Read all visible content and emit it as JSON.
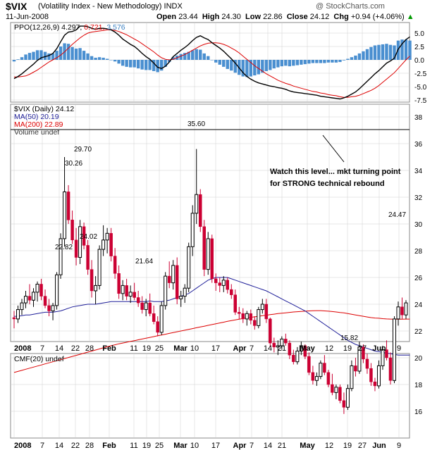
{
  "header": {
    "symbol": "$VIX",
    "name": "(Volatility Index - New Methodology)",
    "exchange": "INDX",
    "date": "11-Jun-2008",
    "watermark": "@ StockCharts.com",
    "open_label": "Open",
    "open": "23.44",
    "high_label": "High",
    "high": "24.30",
    "low_label": "Low",
    "low": "22.86",
    "close_label": "Close",
    "close": "24.12",
    "chg_label": "Chg",
    "chg": "+0.94 (+4.06%)",
    "chg_arrow": "▲"
  },
  "colors": {
    "up": "#000000",
    "down": "#cc0033",
    "ma50": "#1f1f99",
    "ma200": "#dd0000",
    "ppo": "#000000",
    "signal": "#dd0000",
    "histogram": "#4a8fd0",
    "grid": "#cfcfcf"
  },
  "ppo_panel": {
    "legend_prefix": "PPO(12,26,9)",
    "ppo_value": "4.297,",
    "signal_value": "0.721,",
    "hist_value": "3.576",
    "y_ticks": [
      "5.0",
      "2.5",
      "0.0",
      "-2.5",
      "-5.0",
      "-7.5"
    ]
  },
  "price_panel": {
    "legend_main": "$VIX (Daily) 24.12",
    "legend_ma50": "MA(50) 20.19",
    "legend_ma200": "MA(200) 22.89",
    "legend_volume": "Volume undef",
    "y_ticks": [
      "38",
      "36",
      "34",
      "32",
      "30",
      "28",
      "26",
      "24",
      "22",
      "20",
      "18",
      "16"
    ],
    "annotation_line1": "Watch this level... mkt turning point",
    "annotation_line2": "for STRONG technical rebound",
    "labels": [
      "35.60",
      "30.26",
      "29.70",
      "24.02",
      "22.82",
      "21.64",
      "15.82",
      "24.47"
    ]
  },
  "cmf_panel": {
    "legend": "CMF(20) undef"
  },
  "x_axis": {
    "labels": [
      "2008",
      "7",
      "14",
      "22",
      "28",
      "Feb",
      "11",
      "19",
      "25",
      "Mar",
      "10",
      "17",
      "Apr",
      "7",
      "14",
      "21",
      "May",
      "12",
      "19",
      "27",
      "Jun",
      "9"
    ]
  },
  "chart_data": {
    "type": "candlestick",
    "title": "$VIX (Volatility Index - New Methodology)",
    "period": "Daily",
    "date_range": [
      "2008-01-02",
      "2008-06-11"
    ],
    "ylim": [
      15,
      39
    ],
    "resistance_level": 35.6,
    "ohlc": [
      [
        23.0,
        23.5,
        22.2,
        22.9
      ],
      [
        22.9,
        23.9,
        22.6,
        23.6
      ],
      [
        23.6,
        24.4,
        23.2,
        24.1
      ],
      [
        24.1,
        25.0,
        23.7,
        24.6
      ],
      [
        24.6,
        25.5,
        24.0,
        24.3
      ],
      [
        24.3,
        25.2,
        23.8,
        24.9
      ],
      [
        24.9,
        25.7,
        24.2,
        25.5
      ],
      [
        25.5,
        25.9,
        24.3,
        24.6
      ],
      [
        24.6,
        25.1,
        23.7,
        23.9
      ],
      [
        23.9,
        24.4,
        23.1,
        23.5
      ],
      [
        23.5,
        24.1,
        22.8,
        23.9
      ],
      [
        23.9,
        26.4,
        23.6,
        26.2
      ],
      [
        26.2,
        29.3,
        25.9,
        28.9
      ],
      [
        28.9,
        35.0,
        28.3,
        32.4
      ],
      [
        32.4,
        32.9,
        30.0,
        30.3
      ],
      [
        30.3,
        31.0,
        28.5,
        28.8
      ],
      [
        28.8,
        29.7,
        26.9,
        27.5
      ],
      [
        27.5,
        30.3,
        27.0,
        29.8
      ],
      [
        29.8,
        30.1,
        28.1,
        28.4
      ],
      [
        28.4,
        28.8,
        26.2,
        26.6
      ],
      [
        26.6,
        27.3,
        24.5,
        25.0
      ],
      [
        25.0,
        26.1,
        24.0,
        25.4
      ],
      [
        25.4,
        28.4,
        25.1,
        28.1
      ],
      [
        28.1,
        29.9,
        27.6,
        28.8
      ],
      [
        28.8,
        29.7,
        27.8,
        29.3
      ],
      [
        29.3,
        29.7,
        27.2,
        27.6
      ],
      [
        27.6,
        28.2,
        25.9,
        26.3
      ],
      [
        26.3,
        26.9,
        24.4,
        24.8
      ],
      [
        24.8,
        25.8,
        24.3,
        25.4
      ],
      [
        25.4,
        25.9,
        24.3,
        24.6
      ],
      [
        24.6,
        25.4,
        24.1,
        24.9
      ],
      [
        24.9,
        25.6,
        24.3,
        24.5
      ],
      [
        24.5,
        25.0,
        23.8,
        24.1
      ],
      [
        24.1,
        24.6,
        23.3,
        23.6
      ],
      [
        23.6,
        24.4,
        23.1,
        24.1
      ],
      [
        24.1,
        24.8,
        23.1,
        23.3
      ],
      [
        23.3,
        23.9,
        22.5,
        22.7
      ],
      [
        22.7,
        23.1,
        21.6,
        21.9
      ],
      [
        21.9,
        24.2,
        21.7,
        23.9
      ],
      [
        23.9,
        26.4,
        23.6,
        26.1
      ],
      [
        26.1,
        27.2,
        25.2,
        25.6
      ],
      [
        25.6,
        27.3,
        25.1,
        26.9
      ],
      [
        26.9,
        27.5,
        24.0,
        24.4
      ],
      [
        24.4,
        25.0,
        23.8,
        24.6
      ],
      [
        24.6,
        25.5,
        24.1,
        25.2
      ],
      [
        25.2,
        28.6,
        24.9,
        28.3
      ],
      [
        28.3,
        31.4,
        27.6,
        30.8
      ],
      [
        30.8,
        35.6,
        30.0,
        32.2
      ],
      [
        32.2,
        32.6,
        29.4,
        29.8
      ],
      [
        29.8,
        30.3,
        26.1,
        26.6
      ],
      [
        26.6,
        29.4,
        26.2,
        28.9
      ],
      [
        28.9,
        29.2,
        25.6,
        25.9
      ],
      [
        25.9,
        26.3,
        25.0,
        25.6
      ],
      [
        25.6,
        26.0,
        24.9,
        25.4
      ],
      [
        25.4,
        26.1,
        24.9,
        25.8
      ],
      [
        25.8,
        26.0,
        24.8,
        25.1
      ],
      [
        25.1,
        25.5,
        24.4,
        24.7
      ],
      [
        24.7,
        25.1,
        23.2,
        23.4
      ],
      [
        23.4,
        23.8,
        22.9,
        23.3
      ],
      [
        23.3,
        23.7,
        22.6,
        22.9
      ],
      [
        22.9,
        23.5,
        22.4,
        23.3
      ],
      [
        23.3,
        23.6,
        22.5,
        22.8
      ],
      [
        22.8,
        23.1,
        22.1,
        22.4
      ],
      [
        22.4,
        23.8,
        22.2,
        23.6
      ],
      [
        23.6,
        24.4,
        23.3,
        24.0
      ],
      [
        24.0,
        24.4,
        22.6,
        22.9
      ],
      [
        22.9,
        23.0,
        20.8,
        21.1
      ],
      [
        21.1,
        21.5,
        20.4,
        20.8
      ],
      [
        20.8,
        21.3,
        20.2,
        20.9
      ],
      [
        20.9,
        21.6,
        20.6,
        21.4
      ],
      [
        21.4,
        21.8,
        20.9,
        21.1
      ],
      [
        21.1,
        21.3,
        19.9,
        20.2
      ],
      [
        20.2,
        20.6,
        19.5,
        19.7
      ],
      [
        19.7,
        20.8,
        19.5,
        20.5
      ],
      [
        20.5,
        21.2,
        20.2,
        20.9
      ],
      [
        20.9,
        21.0,
        19.9,
        20.1
      ],
      [
        20.1,
        20.4,
        18.7,
        18.9
      ],
      [
        18.9,
        19.4,
        18.0,
        18.3
      ],
      [
        18.3,
        18.9,
        17.9,
        18.6
      ],
      [
        18.6,
        19.8,
        18.4,
        19.6
      ],
      [
        19.6,
        20.2,
        18.7,
        18.9
      ],
      [
        18.9,
        19.1,
        17.8,
        18.0
      ],
      [
        18.0,
        18.8,
        17.2,
        17.4
      ],
      [
        17.4,
        18.0,
        16.9,
        17.8
      ],
      [
        17.8,
        18.0,
        16.6,
        16.8
      ],
      [
        16.8,
        17.4,
        15.8,
        16.3
      ],
      [
        16.3,
        18.0,
        16.1,
        17.7
      ],
      [
        17.7,
        19.8,
        17.5,
        19.4
      ],
      [
        19.4,
        20.0,
        18.6,
        19.0
      ],
      [
        19.0,
        21.2,
        18.8,
        20.8
      ],
      [
        20.8,
        21.0,
        19.6,
        19.9
      ],
      [
        19.9,
        20.3,
        18.8,
        19.2
      ],
      [
        19.2,
        19.6,
        17.9,
        18.2
      ],
      [
        18.2,
        18.5,
        17.5,
        17.9
      ],
      [
        17.9,
        19.8,
        17.7,
        19.4
      ],
      [
        19.4,
        20.9,
        19.1,
        20.6
      ],
      [
        20.6,
        21.3,
        19.8,
        20.0
      ],
      [
        20.0,
        20.4,
        18.0,
        18.3
      ],
      [
        18.3,
        23.1,
        18.1,
        22.9
      ],
      [
        22.9,
        24.2,
        22.4,
        23.8
      ],
      [
        23.8,
        24.5,
        22.9,
        23.2
      ],
      [
        23.2,
        24.3,
        22.9,
        24.1
      ]
    ],
    "ma50": [
      23.1,
      23.1,
      23.15,
      23.2,
      23.2,
      23.25,
      23.3,
      23.35,
      23.4,
      23.4,
      23.4,
      23.45,
      23.5,
      23.6,
      23.7,
      23.8,
      23.85,
      23.9,
      23.95,
      24.0,
      24.0,
      24.0,
      24.05,
      24.1,
      24.15,
      24.2,
      24.2,
      24.2,
      24.2,
      24.2,
      24.2,
      24.2,
      24.2,
      24.2,
      24.2,
      24.25,
      24.2,
      24.2,
      24.2,
      24.25,
      24.3,
      24.4,
      24.5,
      24.6,
      24.7,
      24.8,
      25.0,
      25.2,
      25.4,
      25.6,
      25.8,
      25.9,
      26.0,
      26.0,
      26.0,
      26.0,
      25.9,
      25.8,
      25.7,
      25.6,
      25.5,
      25.4,
      25.3,
      25.2,
      25.1,
      25.0,
      24.85,
      24.7,
      24.55,
      24.4,
      24.25,
      24.1,
      23.95,
      23.8,
      23.65,
      23.5,
      23.3,
      23.1,
      22.9,
      22.7,
      22.5,
      22.3,
      22.1,
      21.9,
      21.7,
      21.5,
      21.3,
      21.15,
      21.0,
      20.9,
      20.8,
      20.7,
      20.6,
      20.5,
      20.45,
      20.4,
      20.35,
      20.3,
      20.25,
      20.2,
      20.2,
      20.2,
      20.2
    ],
    "ma200": [
      18.9,
      18.98,
      19.06,
      19.14,
      19.22,
      19.3,
      19.38,
      19.46,
      19.54,
      19.62,
      19.7,
      19.78,
      19.86,
      19.94,
      20.02,
      20.1,
      20.18,
      20.26,
      20.34,
      20.42,
      20.5,
      20.58,
      20.66,
      20.74,
      20.82,
      20.9,
      20.97,
      21.04,
      21.1,
      21.16,
      21.22,
      21.28,
      21.34,
      21.4,
      21.46,
      21.52,
      21.58,
      21.64,
      21.7,
      21.76,
      21.82,
      21.88,
      21.94,
      22.0,
      22.06,
      22.12,
      22.18,
      22.24,
      22.3,
      22.36,
      22.42,
      22.48,
      22.54,
      22.6,
      22.66,
      22.72,
      22.78,
      22.83,
      22.88,
      22.93,
      22.98,
      23.02,
      23.06,
      23.1,
      23.14,
      23.18,
      23.22,
      23.26,
      23.3,
      23.33,
      23.36,
      23.39,
      23.42,
      23.44,
      23.46,
      23.48,
      23.5,
      23.51,
      23.52,
      23.52,
      23.5,
      23.48,
      23.45,
      23.42,
      23.38,
      23.35,
      23.3,
      23.25,
      23.2,
      23.15,
      23.1,
      23.05,
      23.0,
      22.97,
      22.95,
      22.92,
      22.9,
      22.89,
      22.88,
      22.88,
      22.88,
      22.89,
      22.89
    ],
    "ppo": [
      -3.5,
      -3.1,
      -2.6,
      -2.0,
      -1.4,
      -0.8,
      -0.1,
      0.4,
      0.6,
      0.8,
      1.2,
      2.1,
      3.4,
      4.6,
      5.2,
      5.3,
      5.6,
      6.3,
      6.3,
      6.2,
      5.9,
      5.7,
      5.9,
      5.9,
      5.8,
      5.6,
      5.2,
      4.6,
      3.9,
      3.4,
      2.9,
      2.5,
      1.9,
      1.2,
      0.6,
      0.1,
      -0.6,
      -1.4,
      -1.6,
      -1.2,
      -0.4,
      0.6,
      1.2,
      1.8,
      2.3,
      2.9,
      3.6,
      4.2,
      4.5,
      4.1,
      3.8,
      3.2,
      2.7,
      2.2,
      1.6,
      0.9,
      0.2,
      -0.6,
      -1.5,
      -2.4,
      -3.1,
      -3.6,
      -4.0,
      -4.3,
      -4.5,
      -4.7,
      -4.9,
      -5.0,
      -5.2,
      -5.3,
      -5.5,
      -5.8,
      -6.0,
      -6.1,
      -6.2,
      -6.3,
      -6.4,
      -6.5,
      -6.6,
      -6.8,
      -6.9,
      -7.0,
      -7.1,
      -7.2,
      -7.3,
      -7.1,
      -6.8,
      -6.4,
      -6.0,
      -5.4,
      -4.7,
      -4.0,
      -3.3,
      -2.6,
      -2.0,
      -1.3,
      -0.6,
      -0.2,
      0.3,
      2.0,
      3.0,
      3.8,
      4.3
    ],
    "signal": [
      -3.2,
      -3.2,
      -3.1,
      -3.0,
      -2.7,
      -2.3,
      -1.9,
      -1.4,
      -0.9,
      -0.4,
      0.0,
      0.4,
      0.9,
      1.5,
      2.2,
      2.9,
      3.5,
      4.1,
      4.6,
      5.0,
      5.2,
      5.3,
      5.4,
      5.5,
      5.6,
      5.6,
      5.5,
      5.3,
      5.0,
      4.7,
      4.3,
      3.9,
      3.5,
      3.0,
      2.5,
      2.0,
      1.5,
      0.9,
      0.4,
      0.1,
      0.0,
      0.1,
      0.4,
      0.7,
      1.0,
      1.4,
      1.8,
      2.2,
      2.6,
      2.9,
      3.1,
      3.2,
      3.2,
      3.1,
      2.9,
      2.6,
      2.2,
      1.8,
      1.3,
      0.7,
      0.1,
      -0.5,
      -1.1,
      -1.6,
      -2.1,
      -2.6,
      -3.0,
      -3.4,
      -3.8,
      -4.1,
      -4.4,
      -4.6,
      -4.9,
      -5.1,
      -5.3,
      -5.5,
      -5.7,
      -5.9,
      -6.0,
      -6.2,
      -6.3,
      -6.5,
      -6.6,
      -6.7,
      -6.9,
      -7.0,
      -7.0,
      -6.9,
      -6.8,
      -6.6,
      -6.3,
      -6.0,
      -5.7,
      -5.3,
      -4.8,
      -4.2,
      -3.6,
      -3.0,
      -2.4,
      -1.6,
      -0.8,
      0.0,
      0.7
    ],
    "hist": [
      -0.3,
      0.1,
      0.5,
      1.0,
      1.3,
      1.5,
      1.8,
      1.8,
      1.5,
      1.2,
      1.2,
      1.7,
      2.5,
      3.1,
      3.0,
      2.4,
      2.1,
      2.2,
      1.7,
      1.2,
      0.7,
      0.4,
      0.5,
      0.4,
      0.2,
      0.0,
      -0.3,
      -0.7,
      -1.1,
      -1.3,
      -1.4,
      -1.4,
      -1.6,
      -1.8,
      -1.9,
      -1.9,
      -2.1,
      -2.3,
      -2.0,
      -1.3,
      -0.4,
      0.5,
      0.8,
      1.1,
      1.3,
      1.5,
      1.8,
      2.0,
      1.9,
      1.2,
      0.7,
      0.0,
      -0.5,
      -0.9,
      -1.3,
      -1.7,
      -2.0,
      -2.4,
      -2.8,
      -3.1,
      -3.2,
      -3.1,
      -2.9,
      -2.7,
      -2.4,
      -2.1,
      -1.9,
      -1.6,
      -1.4,
      -1.2,
      -1.1,
      -1.2,
      -1.1,
      -1.0,
      -0.9,
      -0.8,
      -0.7,
      -0.6,
      -0.6,
      -0.6,
      -0.6,
      -0.5,
      -0.5,
      -0.5,
      -0.4,
      -0.1,
      0.2,
      0.5,
      0.8,
      1.2,
      1.6,
      2.0,
      2.4,
      2.7,
      2.8,
      2.9,
      3.0,
      2.8,
      2.7,
      3.6,
      3.8,
      3.8,
      3.6
    ]
  }
}
